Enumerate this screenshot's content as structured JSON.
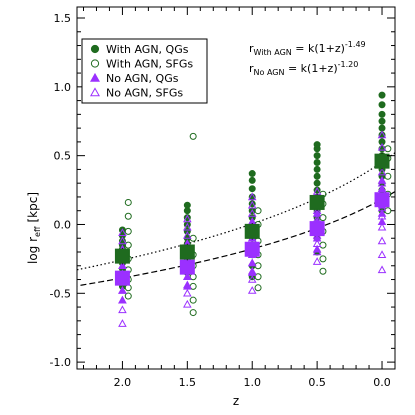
{
  "chart_data": {
    "type": "scatter",
    "xlabel": "z",
    "ylabel_main": "log r",
    "ylabel_sub": "eff",
    "ylabel_unit": "[kpc]",
    "xlim": [
      2.35,
      -0.1
    ],
    "ylim": [
      -1.05,
      1.58
    ],
    "x_ticks": [
      {
        "value": 2.0,
        "label": "2.0"
      },
      {
        "value": 1.5,
        "label": "1.5"
      },
      {
        "value": 1.0,
        "label": "1.0"
      },
      {
        "value": 0.5,
        "label": "0.5"
      },
      {
        "value": 0.0,
        "label": "0.0"
      }
    ],
    "y_ticks": [
      {
        "value": -1.0,
        "label": "-1.0"
      },
      {
        "value": -0.5,
        "label": "-0.5"
      },
      {
        "value": 0.0,
        "label": "0.0"
      },
      {
        "value": 0.5,
        "label": "0.5"
      },
      {
        "value": 1.0,
        "label": "1.0"
      },
      {
        "value": 1.5,
        "label": "1.5"
      }
    ],
    "legend": {
      "placement": "top-left",
      "entries": [
        {
          "label": "With AGN, QGs",
          "marker": "circle",
          "filled": true,
          "color": "#1f6b1f"
        },
        {
          "label": "With AGN, SFGs",
          "marker": "circle",
          "filled": false,
          "color": "#1f6b1f"
        },
        {
          "label": "No AGN, QGs",
          "marker": "triangle",
          "filled": true,
          "color": "#9b30ff"
        },
        {
          "label": "No AGN, SFGs",
          "marker": "triangle",
          "filled": false,
          "color": "#9b30ff"
        }
      ]
    },
    "annotations": [
      {
        "lead": "r",
        "sub": "With AGN",
        "eq": " = k(1+z)",
        "sup": "-1.49"
      },
      {
        "lead": "r",
        "sub": "No AGN",
        "eq": " = k(1+z)",
        "sup": "-1.20"
      }
    ],
    "fits": [
      {
        "label": "With AGN",
        "style": "dotted",
        "k_log": 0.453,
        "exponent": -1.49
      },
      {
        "label": "No AGN",
        "style": "dashed",
        "k_log": 0.184,
        "exponent": -1.2
      }
    ],
    "medians": [
      {
        "series": "No AGN",
        "color": "#9b30ff",
        "points": [
          {
            "x": 2.0,
            "y": -0.39,
            "err": 0.05
          },
          {
            "x": 1.5,
            "y": -0.31,
            "err": 0.05
          },
          {
            "x": 1.0,
            "y": -0.18,
            "err": 0.05
          },
          {
            "x": 0.5,
            "y": -0.03,
            "err": 0.05
          },
          {
            "x": 0.0,
            "y": 0.18,
            "err": 0.05
          }
        ]
      },
      {
        "series": "With AGN",
        "color": "#1f6b1f",
        "points": [
          {
            "x": 2.0,
            "y": -0.23,
            "err": 0.06
          },
          {
            "x": 1.5,
            "y": -0.2,
            "err": 0.06
          },
          {
            "x": 1.0,
            "y": -0.05,
            "err": 0.06
          },
          {
            "x": 0.5,
            "y": 0.16,
            "err": 0.06
          },
          {
            "x": 0.0,
            "y": 0.46,
            "err": 0.06
          }
        ]
      }
    ],
    "series": [
      {
        "name": "With AGN, QGs",
        "marker": "circle",
        "filled": true,
        "color": "#1f6b1f",
        "x_offset": 0.0,
        "points": [
          {
            "x": 2.0,
            "y": [
              -0.45,
              -0.38,
              -0.32,
              -0.28,
              -0.25,
              -0.22,
              -0.18,
              -0.15,
              -0.12,
              -0.08,
              -0.04
            ]
          },
          {
            "x": 1.5,
            "y": [
              -0.35,
              -0.3,
              -0.26,
              -0.22,
              -0.18,
              -0.14,
              -0.1,
              -0.05,
              0.0,
              0.05,
              0.1,
              0.14
            ]
          },
          {
            "x": 1.0,
            "y": [
              -0.38,
              -0.3,
              -0.22,
              -0.15,
              -0.1,
              -0.05,
              0.0,
              0.05,
              0.1,
              0.15,
              0.2,
              0.26,
              0.32,
              0.37
            ]
          },
          {
            "x": 0.5,
            "y": [
              -0.2,
              -0.1,
              -0.02,
              0.05,
              0.1,
              0.15,
              0.2,
              0.25,
              0.3,
              0.35,
              0.4,
              0.45,
              0.5,
              0.55,
              0.58
            ]
          },
          {
            "x": 0.0,
            "y": [
              0.1,
              0.18,
              0.25,
              0.3,
              0.35,
              0.4,
              0.45,
              0.5,
              0.55,
              0.6,
              0.65,
              0.7,
              0.75,
              0.8,
              0.87,
              0.94
            ]
          }
        ]
      },
      {
        "name": "With AGN, SFGs",
        "marker": "circle",
        "filled": false,
        "color": "#1f6b1f",
        "x_offset": -0.045,
        "points": [
          {
            "x": 2.0,
            "y": [
              -0.52,
              -0.46,
              -0.4,
              -0.33,
              -0.25,
              -0.15,
              -0.05,
              0.06,
              0.16
            ]
          },
          {
            "x": 1.5,
            "y": [
              -0.64,
              -0.55,
              -0.45,
              -0.38,
              -0.3,
              -0.22,
              -0.1,
              0.64
            ]
          },
          {
            "x": 1.0,
            "y": [
              -0.46,
              -0.38,
              -0.3,
              -0.22,
              -0.12,
              0.0,
              0.1
            ]
          },
          {
            "x": 0.5,
            "y": [
              -0.34,
              -0.25,
              -0.15,
              -0.05,
              0.05,
              0.15,
              0.22
            ]
          },
          {
            "x": 0.0,
            "y": [
              0.1,
              0.22,
              0.35,
              0.48,
              0.55
            ]
          }
        ]
      },
      {
        "name": "No AGN, QGs",
        "marker": "triangle",
        "filled": true,
        "color": "#9b30ff",
        "x_offset": 0.0,
        "points": [
          {
            "x": 2.0,
            "y": [
              -0.55,
              -0.48,
              -0.42,
              -0.36,
              -0.3,
              -0.24,
              -0.18
            ]
          },
          {
            "x": 1.5,
            "y": [
              -0.45,
              -0.38,
              -0.32,
              -0.26,
              -0.2,
              -0.14
            ]
          },
          {
            "x": 1.0,
            "y": [
              -0.35,
              -0.28,
              -0.22,
              -0.16,
              -0.1,
              -0.04,
              0.02
            ]
          },
          {
            "x": 0.5,
            "y": [
              -0.18,
              -0.1,
              -0.04,
              0.02,
              0.08
            ]
          },
          {
            "x": 0.0,
            "y": [
              0.02,
              0.08,
              0.14,
              0.2,
              0.26,
              0.32
            ]
          }
        ]
      },
      {
        "name": "No AGN, SFGs",
        "marker": "triangle",
        "filled": false,
        "color": "#9b30ff",
        "x_offset": 0.0,
        "points": [
          {
            "x": 2.0,
            "y": [
              -0.72,
              -0.62,
              -0.55,
              -0.48,
              -0.42,
              -0.36,
              -0.3,
              -0.24,
              -0.18,
              -0.12,
              -0.06
            ]
          },
          {
            "x": 1.5,
            "y": [
              -0.58,
              -0.5,
              -0.44,
              -0.38,
              -0.32,
              -0.26,
              -0.2,
              -0.14,
              -0.08,
              -0.02,
              0.04
            ]
          },
          {
            "x": 1.0,
            "y": [
              -0.48,
              -0.4,
              -0.34,
              -0.28,
              -0.22,
              -0.16,
              -0.1,
              -0.04,
              0.02,
              0.08,
              0.14,
              0.2
            ]
          },
          {
            "x": 0.5,
            "y": [
              -0.27,
              -0.2,
              -0.14,
              -0.08,
              -0.02,
              0.04,
              0.1,
              0.16,
              0.24
            ]
          },
          {
            "x": 0.0,
            "y": [
              -0.33,
              -0.22,
              -0.12,
              -0.02,
              0.06,
              0.12,
              0.18,
              0.24,
              0.3,
              0.38,
              0.46,
              0.56,
              0.65
            ]
          }
        ]
      }
    ]
  }
}
